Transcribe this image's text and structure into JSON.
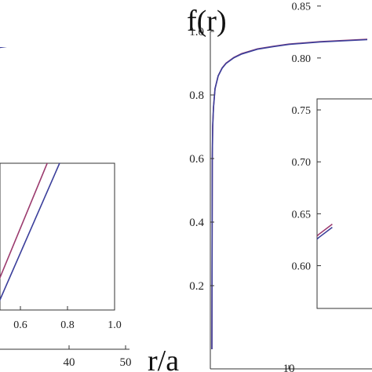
{
  "figure": {
    "ylabel_right": "f(r)",
    "xlabel_center": "r/a"
  },
  "colors": {
    "series_red": "#9b3a6e",
    "series_blue": "#3b3f9b",
    "axis": "#333333"
  },
  "chart_data": [
    {
      "id": "left-main",
      "type": "line",
      "xlim": [
        0,
        50
      ],
      "ylim": [
        0,
        1.0
      ],
      "x_ticks": [
        40,
        50
      ],
      "series": [
        {
          "color_key": "series_red",
          "points": [
            [
              23,
              0.905
            ],
            [
              30,
              0.922
            ],
            [
              35,
              0.932
            ],
            [
              40,
              0.943
            ],
            [
              45,
              0.953
            ],
            [
              50,
              0.963
            ]
          ]
        },
        {
          "color_key": "series_blue",
          "points": [
            [
              23,
              0.904
            ],
            [
              30,
              0.921
            ],
            [
              35,
              0.931
            ],
            [
              40,
              0.942
            ],
            [
              45,
              0.952
            ],
            [
              50,
              0.962
            ]
          ]
        }
      ]
    },
    {
      "id": "left-inset",
      "type": "line",
      "xlim": [
        0,
        1.0
      ],
      "ylim": [
        0,
        1.0
      ],
      "x_ticks": [
        0.6,
        0.8,
        1.0
      ],
      "series": [
        {
          "color_key": "series_red",
          "points": [
            [
              0.5,
              0.08
            ],
            [
              1.0,
              1.0
            ]
          ]
        },
        {
          "color_key": "series_blue",
          "points": [
            [
              0.5,
              0.01
            ],
            [
              1.0,
              0.88
            ]
          ]
        }
      ]
    },
    {
      "id": "right-main",
      "type": "line",
      "xlim": [
        0,
        20
      ],
      "ylim": [
        0,
        1.0
      ],
      "x_ticks": [
        10
      ],
      "y_ticks": [
        0.2,
        0.4,
        0.6,
        0.8,
        1.0
      ],
      "series": [
        {
          "color_key": "series_red",
          "points": [
            [
              0.2,
              0.0
            ],
            [
              0.25,
              0.6
            ],
            [
              0.3,
              0.7
            ],
            [
              0.4,
              0.76
            ],
            [
              0.6,
              0.82
            ],
            [
              1,
              0.86
            ],
            [
              1.5,
              0.885
            ],
            [
              2,
              0.9
            ],
            [
              3,
              0.918
            ],
            [
              4,
              0.93
            ],
            [
              6,
              0.945
            ],
            [
              8,
              0.953
            ],
            [
              10,
              0.96
            ],
            [
              14,
              0.968
            ],
            [
              20,
              0.975
            ]
          ]
        },
        {
          "color_key": "series_blue",
          "points": [
            [
              0.2,
              0.0
            ],
            [
              0.25,
              0.6
            ],
            [
              0.3,
              0.7
            ],
            [
              0.4,
              0.76
            ],
            [
              0.6,
              0.82
            ],
            [
              1,
              0.86
            ],
            [
              1.5,
              0.884
            ],
            [
              2,
              0.899
            ],
            [
              3,
              0.917
            ],
            [
              4,
              0.929
            ],
            [
              6,
              0.944
            ],
            [
              8,
              0.952
            ],
            [
              10,
              0.959
            ],
            [
              14,
              0.967
            ],
            [
              20,
              0.974
            ]
          ]
        }
      ]
    },
    {
      "id": "right-inset",
      "type": "line",
      "xlim": [
        0,
        1.0
      ],
      "ylim": [
        0.58,
        0.88
      ],
      "y_ticks": [
        0.6,
        0.65,
        0.7,
        0.75,
        0.8,
        0.85
      ],
      "series": [
        {
          "color_key": "series_red",
          "points": [
            [
              0.6,
              0.588
            ],
            [
              0.7,
              0.63
            ],
            [
              0.73,
              0.64
            ]
          ]
        },
        {
          "color_key": "series_blue",
          "points": [
            [
              0.6,
              0.586
            ],
            [
              0.7,
              0.627
            ],
            [
              0.73,
              0.637
            ]
          ]
        }
      ]
    }
  ]
}
